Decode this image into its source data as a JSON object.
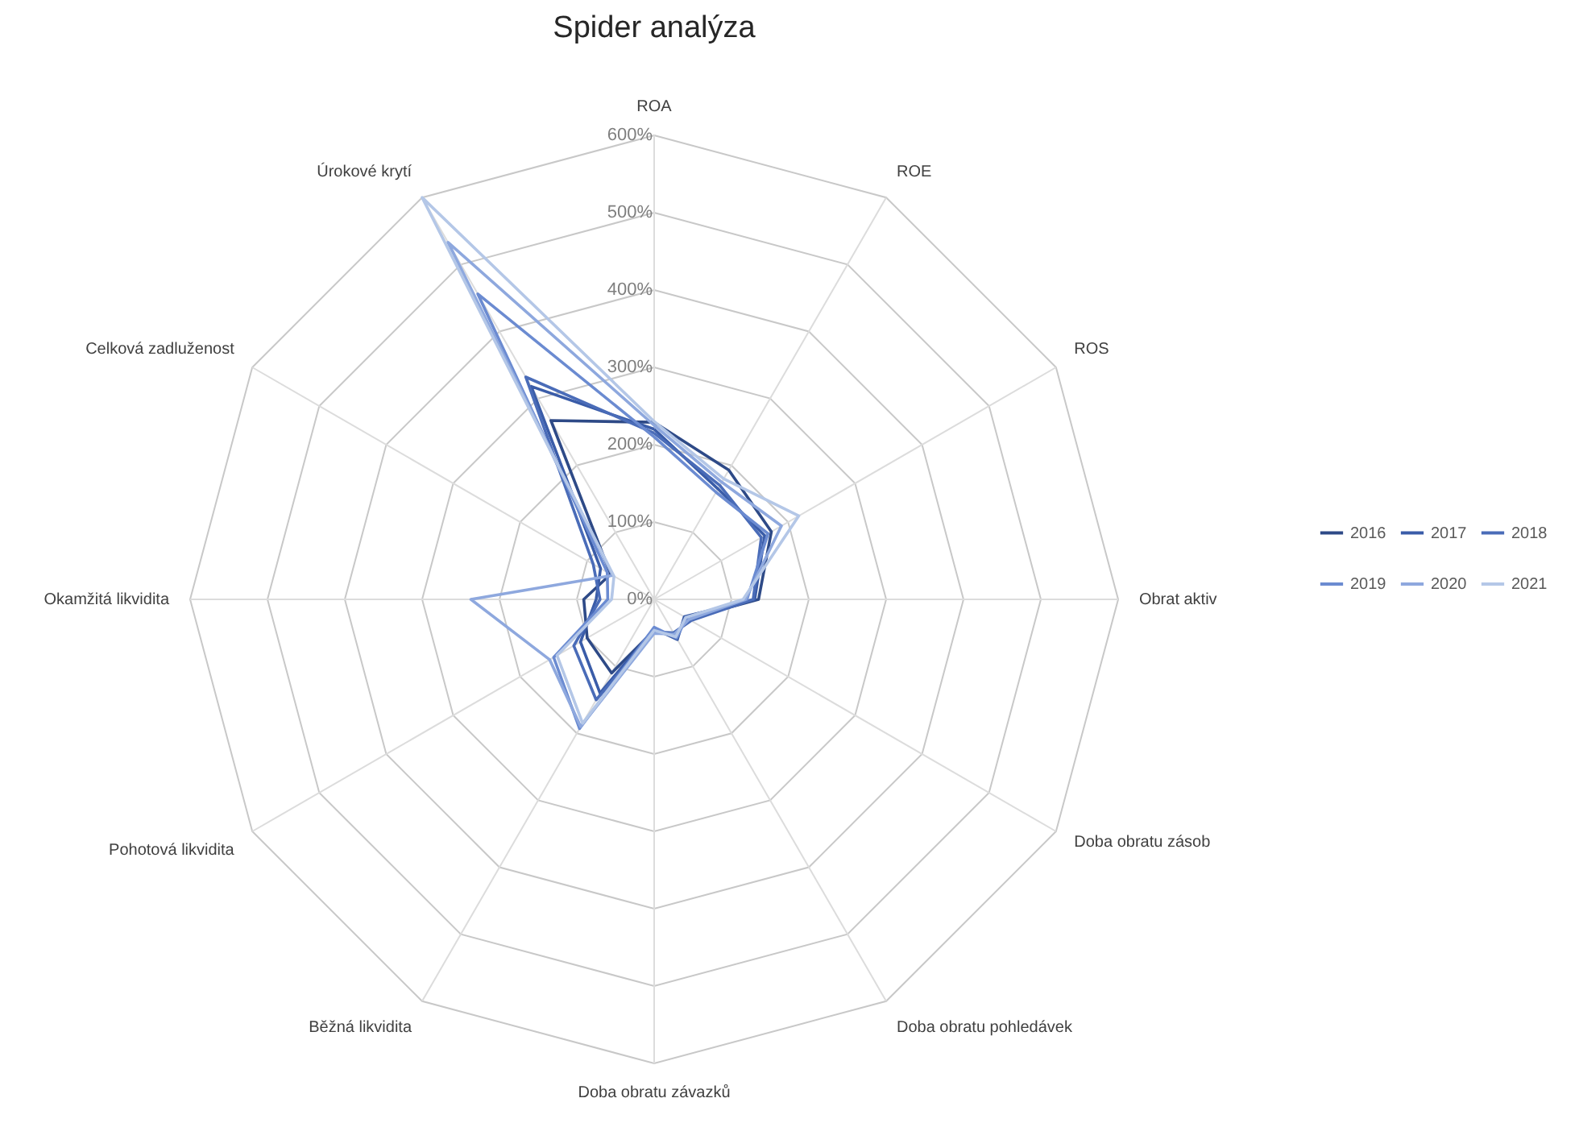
{
  "chart_data": {
    "type": "radar",
    "title": "Spider analýza",
    "categories": [
      "ROA",
      "ROE",
      "ROS",
      "Obrat aktiv",
      "Doba obratu zásob",
      "Doba obratu pohledávek",
      "Doba obratu závazků",
      "Běžná likvidita",
      "Pohotová likvidita",
      "Okamžitá likvidita",
      "Celková zadluženost",
      "Úrokové krytí"
    ],
    "ylim": [
      0,
      600
    ],
    "yticks": [
      {
        "value": 0,
        "label": "0%"
      },
      {
        "value": 100,
        "label": "100%"
      },
      {
        "value": 200,
        "label": "200%"
      },
      {
        "value": 300,
        "label": "300%"
      },
      {
        "value": 400,
        "label": "400%"
      },
      {
        "value": 500,
        "label": "500%"
      },
      {
        "value": 600,
        "label": "600%"
      }
    ],
    "grid": true,
    "legend": "right",
    "marker": "none",
    "line_style": "solid",
    "series": [
      {
        "name": "2016",
        "color": "#2e4a87",
        "values": [
          229,
          193,
          175,
          135,
          50,
          55,
          40,
          110,
          100,
          91,
          65,
          267
        ]
      },
      {
        "name": "2017",
        "color": "#3a5ca8",
        "values": [
          220,
          165,
          165,
          130,
          45,
          60,
          38,
          140,
          110,
          75,
          80,
          318
        ]
      },
      {
        "name": "2018",
        "color": "#4a6cb8",
        "values": [
          215,
          170,
          160,
          128,
          55,
          50,
          42,
          150,
          120,
          70,
          91,
          332
        ]
      },
      {
        "name": "2019",
        "color": "#6b8bd1",
        "values": [
          210,
          160,
          170,
          120,
          48,
          58,
          36,
          193,
          150,
          60,
          70,
          456
        ]
      },
      {
        "name": "2020",
        "color": "#8ea8de",
        "values": [
          225,
          175,
          190,
          118,
          52,
          52,
          44,
          190,
          156,
          237,
          62,
          533
        ]
      },
      {
        "name": "2021",
        "color": "#b4c7e7",
        "values": [
          230,
          180,
          216,
          115,
          47,
          56,
          40,
          185,
          145,
          55,
          60,
          600
        ]
      }
    ]
  }
}
